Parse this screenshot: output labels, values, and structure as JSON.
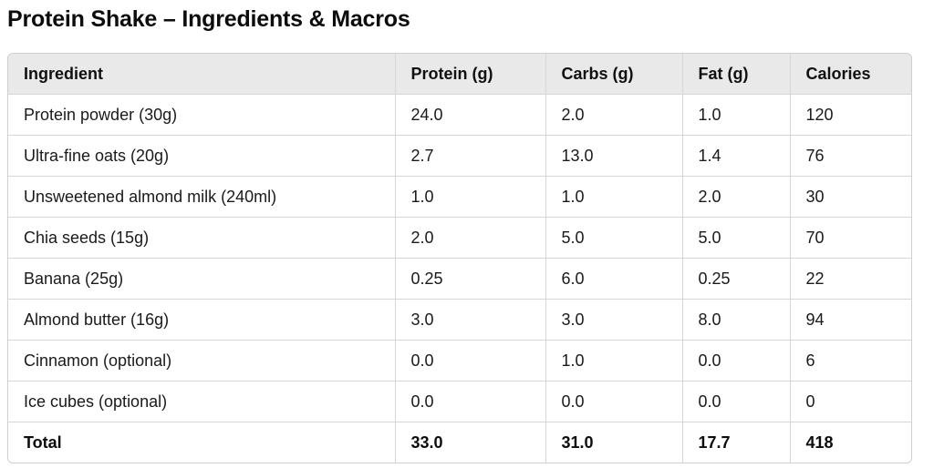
{
  "title": "Protein Shake – Ingredients & Macros",
  "table": {
    "headers": [
      "Ingredient",
      "Protein (g)",
      "Carbs (g)",
      "Fat (g)",
      "Calories"
    ],
    "rows": [
      [
        "Protein powder (30g)",
        "24.0",
        "2.0",
        "1.0",
        "120"
      ],
      [
        "Ultra-fine oats (20g)",
        "2.7",
        "13.0",
        "1.4",
        "76"
      ],
      [
        "Unsweetened almond milk (240ml)",
        "1.0",
        "1.0",
        "2.0",
        "30"
      ],
      [
        "Chia seeds (15g)",
        "2.0",
        "5.0",
        "5.0",
        "70"
      ],
      [
        "Banana (25g)",
        "0.25",
        "6.0",
        "0.25",
        "22"
      ],
      [
        "Almond butter (16g)",
        "3.0",
        "3.0",
        "8.0",
        "94"
      ],
      [
        "Cinnamon (optional)",
        "0.0",
        "1.0",
        "0.0",
        "6"
      ],
      [
        "Ice cubes (optional)",
        "0.0",
        "0.0",
        "0.0",
        "0"
      ]
    ],
    "total": [
      "Total",
      "33.0",
      "31.0",
      "17.7",
      "418"
    ]
  }
}
